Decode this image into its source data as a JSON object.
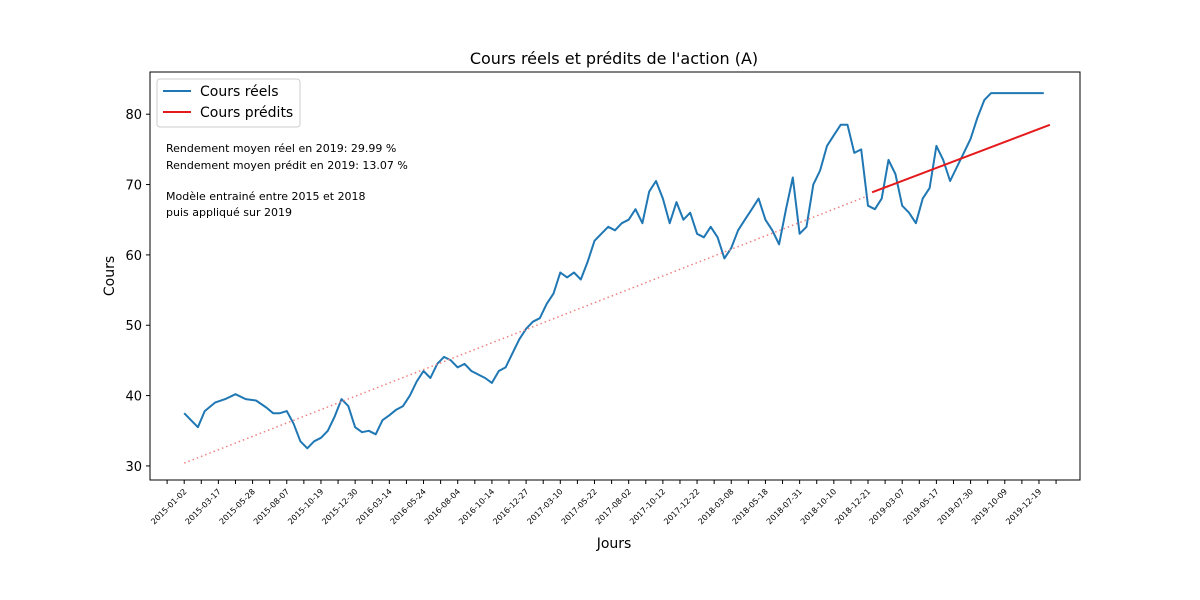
{
  "chart_data": {
    "type": "line",
    "title": "Cours réels et prédits de l'action (A)",
    "xlabel": "Jours",
    "ylabel": "Cours",
    "x_ticks": [
      "2015-01-02",
      "2015-03-17",
      "2015-05-28",
      "2015-08-07",
      "2015-10-19",
      "2015-12-30",
      "2016-03-14",
      "2016-05-24",
      "2016-08-04",
      "2016-10-14",
      "2016-12-27",
      "2017-03-10",
      "2017-05-22",
      "2017-08-02",
      "2017-10-12",
      "2017-12-22",
      "2018-03-08",
      "2018-05-18",
      "2018-07-31",
      "2018-10-10",
      "2018-12-21",
      "2019-03-07",
      "2019-05-17",
      "2019-07-30",
      "2019-10-09",
      "2019-12-19"
    ],
    "xlim": [
      -50,
      1310
    ],
    "ylim": [
      28,
      86
    ],
    "y_ticks": [
      30,
      40,
      50,
      60,
      70,
      80
    ],
    "grid": false,
    "legend": "upper-left",
    "series": [
      {
        "name": "Cours réels",
        "color": "#1f77b4",
        "x": [
          0,
          10,
          20,
          30,
          45,
          60,
          75,
          90,
          105,
          120,
          130,
          140,
          150,
          160,
          170,
          180,
          190,
          200,
          210,
          220,
          230,
          240,
          250,
          260,
          270,
          280,
          290,
          300,
          310,
          320,
          330,
          340,
          350,
          360,
          370,
          380,
          390,
          400,
          410,
          420,
          430,
          440,
          450,
          460,
          470,
          480,
          490,
          500,
          510,
          520,
          530,
          540,
          550,
          560,
          570,
          580,
          590,
          600,
          610,
          620,
          630,
          640,
          650,
          660,
          670,
          680,
          690,
          700,
          710,
          720,
          730,
          740,
          750,
          760,
          770,
          780,
          790,
          800,
          810,
          820,
          830,
          840,
          850,
          860,
          870,
          880,
          890,
          900,
          910,
          920,
          930,
          940,
          950,
          960,
          970,
          980,
          990,
          1000,
          1010,
          1020,
          1030,
          1040,
          1050,
          1060,
          1070,
          1080,
          1090,
          1100,
          1110,
          1120,
          1130,
          1140,
          1150,
          1160,
          1170,
          1180,
          1190,
          1200,
          1210,
          1220,
          1230,
          1240,
          1250,
          1257
        ],
        "y": [
          37.5,
          36.5,
          35.5,
          37.8,
          39.0,
          39.5,
          40.2,
          39.5,
          39.3,
          38.3,
          37.5,
          37.5,
          37.8,
          36.0,
          33.5,
          32.5,
          33.5,
          34.0,
          35.0,
          37.0,
          39.5,
          38.5,
          35.5,
          34.8,
          35.0,
          34.5,
          36.5,
          37.2,
          38.0,
          38.5,
          40.0,
          42.0,
          43.5,
          42.5,
          44.5,
          45.5,
          45.0,
          44.0,
          44.5,
          43.5,
          43.0,
          42.5,
          41.8,
          43.5,
          44.0,
          46.0,
          48.0,
          49.5,
          50.5,
          51.0,
          53.0,
          54.5,
          57.5,
          56.8,
          57.5,
          56.5,
          59.0,
          62.0,
          63.0,
          64.0,
          63.5,
          64.5,
          65.0,
          66.5,
          64.5,
          69.0,
          70.5,
          68.0,
          64.5,
          67.5,
          65.0,
          66.0,
          63.0,
          62.5,
          64.0,
          62.5,
          59.5,
          61.0,
          63.5,
          65.0,
          66.5,
          68.0,
          65.0,
          63.5,
          61.5,
          66.5,
          71.0,
          63.0,
          64.0,
          70.0,
          72.0,
          75.5,
          77.0,
          78.5,
          78.5,
          74.5,
          75.0,
          67.0,
          66.5,
          68.0,
          73.5,
          71.5,
          67.0,
          66.0,
          64.5,
          68.0,
          69.5,
          75.5,
          73.5,
          70.5,
          72.5,
          74.5,
          76.5,
          79.5,
          82.0,
          83.0,
          83.0,
          83.0,
          83.0,
          83.0,
          83.0,
          83.0,
          83.0,
          83.0
        ]
      },
      {
        "name": "Cours prédits",
        "color": "#e41a1c",
        "x": [
          1006,
          1266
        ],
        "y": [
          68.9,
          78.5
        ]
      },
      {
        "color": "#f08080",
        "style": "dotted",
        "x": [
          0,
          1000
        ],
        "y": [
          30.4,
          68.4
        ]
      }
    ],
    "annotations": [
      "Rendement moyen réel en 2019: 29.99 %",
      "Rendement moyen prédit en 2019: 13.07 %",
      "Modèle entrainé entre 2015 et 2018",
      "puis appliqué sur 2019"
    ]
  }
}
